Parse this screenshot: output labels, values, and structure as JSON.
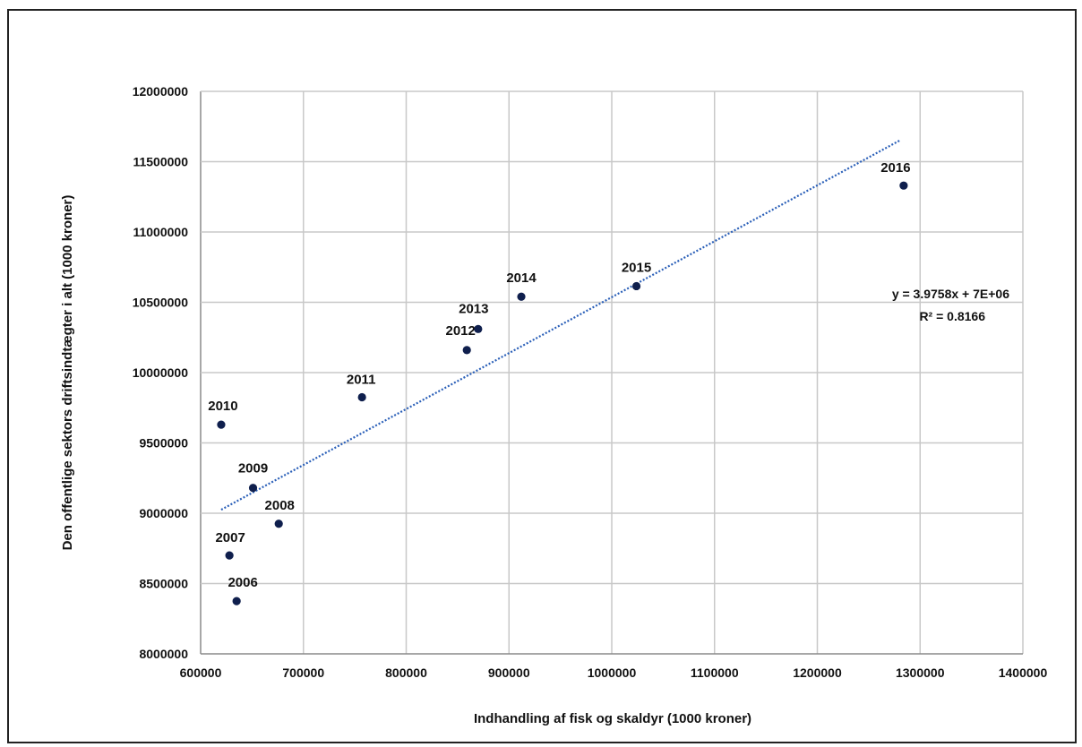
{
  "chart_data": {
    "type": "scatter",
    "title": "",
    "xlabel": "Indhandling af fisk og skaldyr (1000 kroner)",
    "ylabel": "Den offentlige sektors driftsindtægter i alt (1000 kroner)",
    "xlim": [
      600000,
      1400000
    ],
    "ylim": [
      8000000,
      12000000
    ],
    "xticks": [
      "600000",
      "700000",
      "800000",
      "900000",
      "1000000",
      "1100000",
      "1200000",
      "1300000",
      "1400000"
    ],
    "yticks": [
      "8000000",
      "8500000",
      "9000000",
      "9500000",
      "10000000",
      "10500000",
      "11000000",
      "11500000",
      "12000000"
    ],
    "grid": true,
    "marker_color": "#0f1f4d",
    "trend_color": "#2a5fb8",
    "points": [
      {
        "label": "2006",
        "x": 635000,
        "y": 8375000
      },
      {
        "label": "2007",
        "x": 628000,
        "y": 8700000
      },
      {
        "label": "2008",
        "x": 676000,
        "y": 8925000
      },
      {
        "label": "2009",
        "x": 651000,
        "y": 9180000
      },
      {
        "label": "2010",
        "x": 620000,
        "y": 9630000
      },
      {
        "label": "2011",
        "x": 757000,
        "y": 9825000
      },
      {
        "label": "2012",
        "x": 859000,
        "y": 10160000
      },
      {
        "label": "2013",
        "x": 870000,
        "y": 10310000
      },
      {
        "label": "2014",
        "x": 912000,
        "y": 10540000
      },
      {
        "label": "2015",
        "x": 1024000,
        "y": 10615000
      },
      {
        "label": "2016",
        "x": 1284000,
        "y": 11330000
      }
    ],
    "trendline": {
      "x": [
        620000,
        1280000
      ],
      "y": [
        9025000,
        11650000
      ],
      "equation": "y = 3.9758x + 7E+06",
      "r_squared": "R² = 0.8166"
    }
  }
}
